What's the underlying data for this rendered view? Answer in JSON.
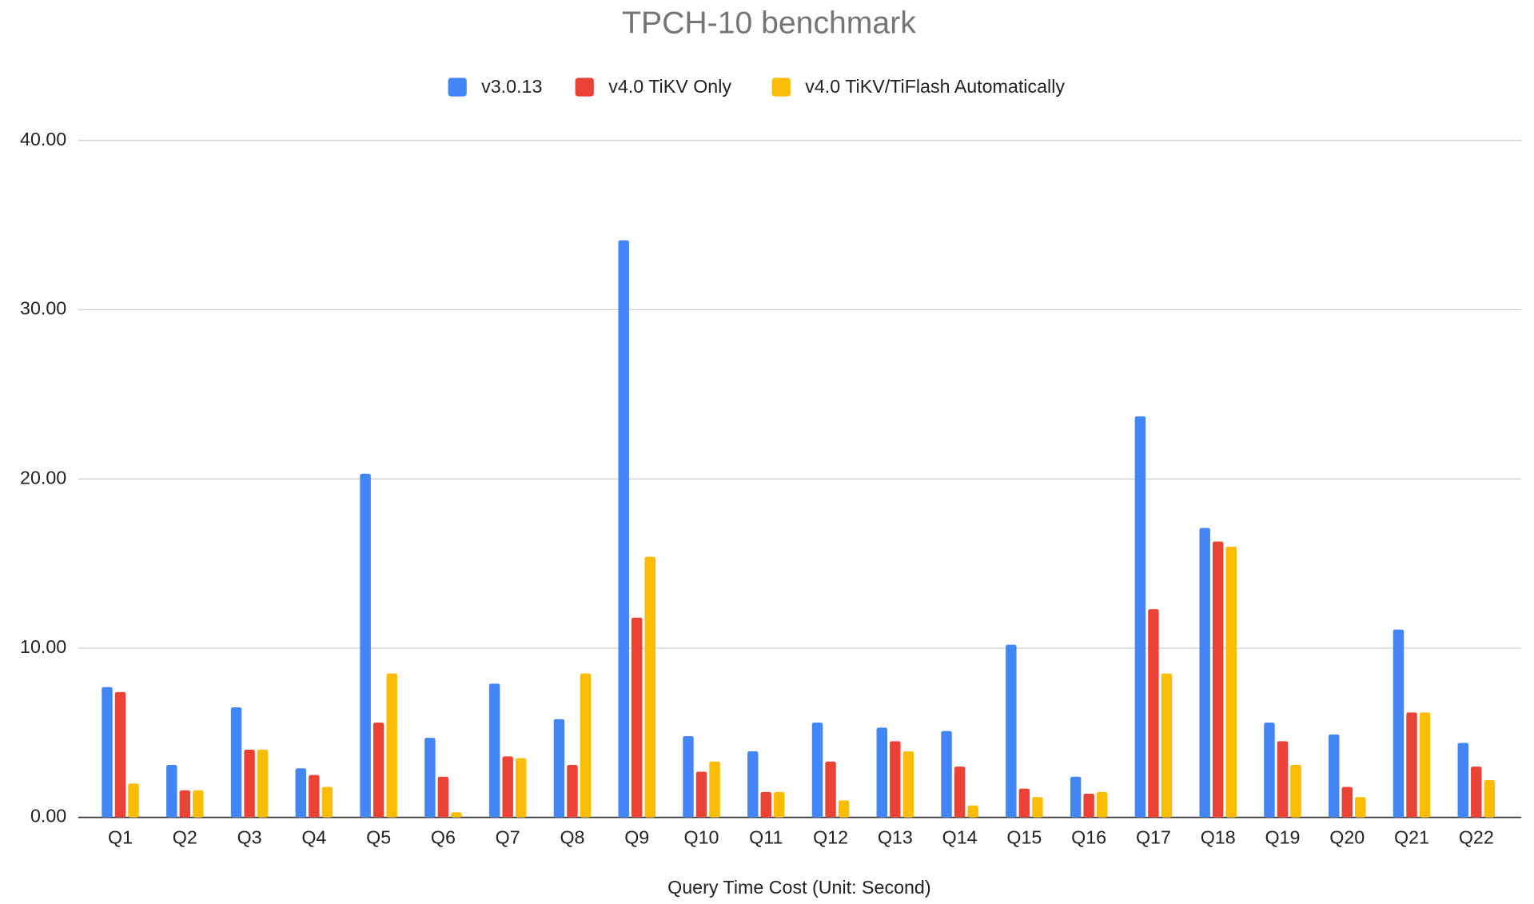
{
  "chart_data": {
    "type": "bar",
    "title": "TPCH-10 benchmark",
    "x_label": "Query Time Cost (Unit: Second)",
    "categories": [
      "Q1",
      "Q2",
      "Q3",
      "Q4",
      "Q5",
      "Q6",
      "Q7",
      "Q8",
      "Q9",
      "Q10",
      "Q11",
      "Q12",
      "Q13",
      "Q14",
      "Q15",
      "Q16",
      "Q17",
      "Q18",
      "Q19",
      "Q20",
      "Q21",
      "Q22"
    ],
    "series": [
      {
        "name": "v3.0.13",
        "color": "#4285f4",
        "values": [
          7.7,
          3.1,
          6.5,
          2.9,
          20.3,
          4.7,
          7.9,
          5.8,
          34.1,
          4.8,
          3.9,
          5.6,
          5.3,
          5.1,
          10.2,
          2.4,
          23.7,
          17.1,
          5.6,
          4.9,
          11.1,
          4.4
        ]
      },
      {
        "name": "v4.0 TiKV Only",
        "color": "#ea4335",
        "values": [
          7.4,
          1.6,
          4.0,
          2.5,
          5.6,
          2.4,
          3.6,
          3.1,
          11.8,
          2.7,
          1.5,
          3.3,
          4.5,
          3.0,
          1.7,
          1.4,
          12.3,
          16.3,
          4.5,
          1.8,
          6.2,
          3.0
        ]
      },
      {
        "name": "v4.0 TiKV/TiFlash Automatically",
        "color": "#fbbc04",
        "values": [
          2.0,
          1.6,
          4.0,
          1.8,
          8.5,
          0.3,
          3.5,
          8.5,
          15.4,
          3.3,
          1.5,
          1.0,
          3.9,
          0.7,
          1.2,
          1.5,
          8.5,
          16.0,
          3.1,
          1.2,
          6.2,
          2.2
        ]
      }
    ],
    "ylim": [
      0,
      40
    ],
    "yticks": [
      {
        "value": 0,
        "label": "0.00"
      },
      {
        "value": 10,
        "label": "10.00"
      },
      {
        "value": 20,
        "label": "20.00"
      },
      {
        "value": 30,
        "label": "30.00"
      },
      {
        "value": 40,
        "label": "40.00"
      }
    ],
    "grid": true,
    "legend": "top"
  }
}
